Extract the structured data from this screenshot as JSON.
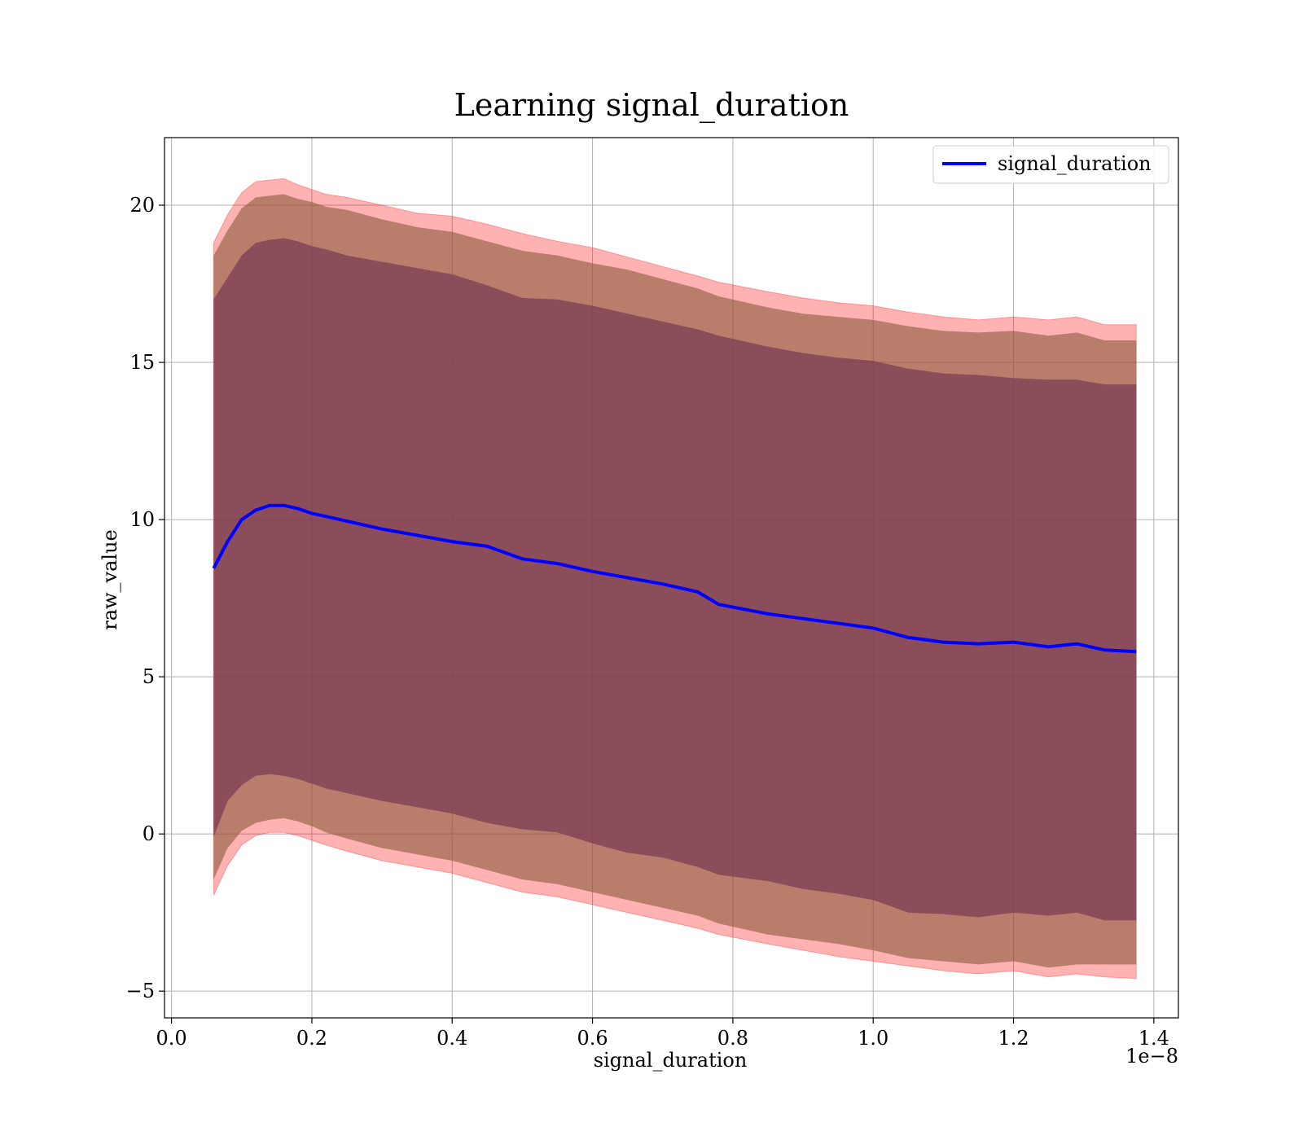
{
  "chart_data": {
    "type": "line",
    "title": "Learning signal_duration",
    "xlabel": "signal_duration",
    "ylabel": "raw_value",
    "x_offset_label": "1e−8",
    "xlim": [
      -0.01,
      1.435
    ],
    "ylim": [
      -5.85,
      22.15
    ],
    "x_ticks": [
      0.0,
      0.2,
      0.4,
      0.6,
      0.8,
      1.0,
      1.2,
      1.4
    ],
    "x_tick_labels": [
      "0.0",
      "0.2",
      "0.4",
      "0.6",
      "0.8",
      "1.0",
      "1.2",
      "1.4"
    ],
    "y_ticks": [
      -5,
      0,
      5,
      10,
      15,
      20
    ],
    "y_tick_labels": [
      "−5",
      "0",
      "5",
      "10",
      "15",
      "20"
    ],
    "grid": true,
    "legend_position": "top-right",
    "colors": {
      "line": "#0000ff",
      "band_outer": "#ff0000",
      "band_middle": "#8b5a3c",
      "band_inner": "#7a3a55"
    },
    "x": [
      0.06,
      0.08,
      0.1,
      0.12,
      0.14,
      0.16,
      0.18,
      0.2,
      0.22,
      0.25,
      0.3,
      0.35,
      0.4,
      0.45,
      0.5,
      0.55,
      0.6,
      0.65,
      0.7,
      0.75,
      0.78,
      0.85,
      0.9,
      0.95,
      1.0,
      1.05,
      1.1,
      1.15,
      1.2,
      1.25,
      1.29,
      1.33,
      1.375
    ],
    "series": [
      {
        "name": "signal_duration",
        "values": [
          8.45,
          9.3,
          10.0,
          10.3,
          10.45,
          10.45,
          10.35,
          10.2,
          10.1,
          9.95,
          9.7,
          9.5,
          9.3,
          9.15,
          8.75,
          8.6,
          8.35,
          8.15,
          7.95,
          7.7,
          7.3,
          7.0,
          6.85,
          6.7,
          6.55,
          6.25,
          6.1,
          6.05,
          6.1,
          5.95,
          6.05,
          5.85,
          5.8
        ],
        "band_inner": {
          "lower": [
            -0.1,
            1.05,
            1.55,
            1.85,
            1.9,
            1.85,
            1.75,
            1.6,
            1.45,
            1.3,
            1.05,
            0.85,
            0.65,
            0.35,
            0.15,
            0.05,
            -0.3,
            -0.6,
            -0.75,
            -1.05,
            -1.3,
            -1.5,
            -1.75,
            -1.9,
            -2.1,
            -2.5,
            -2.55,
            -2.65,
            -2.5,
            -2.6,
            -2.5,
            -2.75,
            -2.75
          ],
          "upper": [
            17.0,
            17.7,
            18.4,
            18.8,
            18.9,
            18.95,
            18.85,
            18.7,
            18.6,
            18.4,
            18.2,
            18.0,
            17.8,
            17.45,
            17.05,
            17.0,
            16.8,
            16.55,
            16.3,
            16.05,
            15.85,
            15.5,
            15.3,
            15.15,
            15.05,
            14.8,
            14.65,
            14.6,
            14.5,
            14.45,
            14.45,
            14.3,
            14.3
          ]
        },
        "band_middle": {
          "lower": [
            -1.45,
            -0.45,
            0.1,
            0.35,
            0.45,
            0.5,
            0.4,
            0.25,
            0.05,
            -0.15,
            -0.45,
            -0.65,
            -0.85,
            -1.15,
            -1.45,
            -1.6,
            -1.85,
            -2.1,
            -2.35,
            -2.6,
            -2.85,
            -3.2,
            -3.35,
            -3.5,
            -3.7,
            -3.95,
            -4.05,
            -4.15,
            -4.05,
            -4.25,
            -4.15,
            -4.15,
            -4.15
          ],
          "upper": [
            18.4,
            19.2,
            19.9,
            20.25,
            20.3,
            20.35,
            20.2,
            20.1,
            19.95,
            19.85,
            19.55,
            19.3,
            19.15,
            18.85,
            18.55,
            18.4,
            18.15,
            17.95,
            17.65,
            17.35,
            17.1,
            16.75,
            16.55,
            16.45,
            16.35,
            16.15,
            16.0,
            15.95,
            16.0,
            15.85,
            15.95,
            15.7,
            15.7
          ]
        },
        "band_outer": {
          "lower": [
            -1.95,
            -1.0,
            -0.35,
            -0.05,
            0.05,
            0.05,
            -0.05,
            -0.2,
            -0.35,
            -0.55,
            -0.85,
            -1.05,
            -1.25,
            -1.55,
            -1.85,
            -2.0,
            -2.25,
            -2.5,
            -2.75,
            -3.0,
            -3.2,
            -3.5,
            -3.7,
            -3.9,
            -4.05,
            -4.2,
            -4.35,
            -4.45,
            -4.35,
            -4.55,
            -4.45,
            -4.55,
            -4.6
          ],
          "upper": [
            18.8,
            19.7,
            20.4,
            20.75,
            20.8,
            20.85,
            20.65,
            20.5,
            20.35,
            20.25,
            20.0,
            19.75,
            19.65,
            19.4,
            19.1,
            18.85,
            18.65,
            18.35,
            18.05,
            17.75,
            17.55,
            17.25,
            17.05,
            16.9,
            16.8,
            16.6,
            16.45,
            16.35,
            16.45,
            16.35,
            16.45,
            16.2,
            16.2
          ]
        }
      }
    ]
  }
}
